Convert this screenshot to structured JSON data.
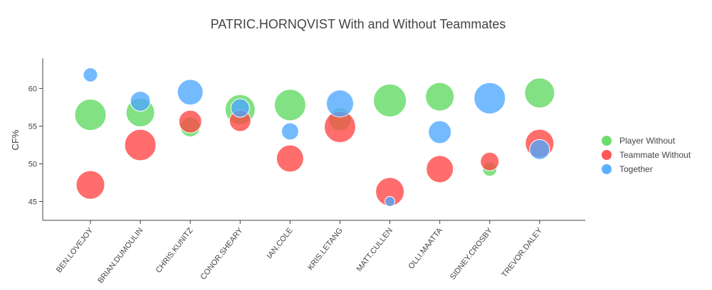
{
  "chart_data": {
    "type": "scatter",
    "title": "PATRIC.HORNQVIST With and Without Teammates",
    "xlabel": "",
    "ylabel": "CF%",
    "ylim": [
      42.5,
      64
    ],
    "yticks": [
      45,
      50,
      55,
      60
    ],
    "categories": [
      "BEN.LOVEJOY",
      "BRIAN.DUMOULIN",
      "CHRIS.KUNITZ",
      "CONOR.SHEARY",
      "IAN.COLE",
      "KRIS.LETANG",
      "MATT.CULLEN",
      "OLLI.MAATTA",
      "SIDNEY.CROSBY",
      "TREVOR.DALEY"
    ],
    "legend_position": "right",
    "grid": false,
    "series": [
      {
        "name": "Player Without",
        "color": "#5fd85f",
        "values": [
          56.5,
          56.8,
          54.9,
          57.2,
          57.8,
          55.9,
          58.4,
          58.9,
          49.3,
          59.4
        ],
        "sizes": [
          22,
          20,
          14,
          21,
          22,
          16,
          23,
          20,
          10,
          21
        ]
      },
      {
        "name": "Teammate Without",
        "color": "#ff4444",
        "values": [
          47.2,
          52.5,
          55.6,
          55.7,
          50.7,
          54.9,
          46.3,
          49.3,
          50.3,
          52.7
        ],
        "sizes": [
          20,
          22,
          16,
          15,
          19,
          22,
          20,
          19,
          13,
          20
        ]
      },
      {
        "name": "Together",
        "color": "#4da6ff",
        "values": [
          61.8,
          58.3,
          59.5,
          57.4,
          54.3,
          58.0,
          45.0,
          54.2,
          58.7,
          51.9
        ],
        "sizes": [
          10,
          14,
          18,
          13,
          12,
          19,
          7,
          16,
          22,
          14
        ]
      }
    ]
  }
}
